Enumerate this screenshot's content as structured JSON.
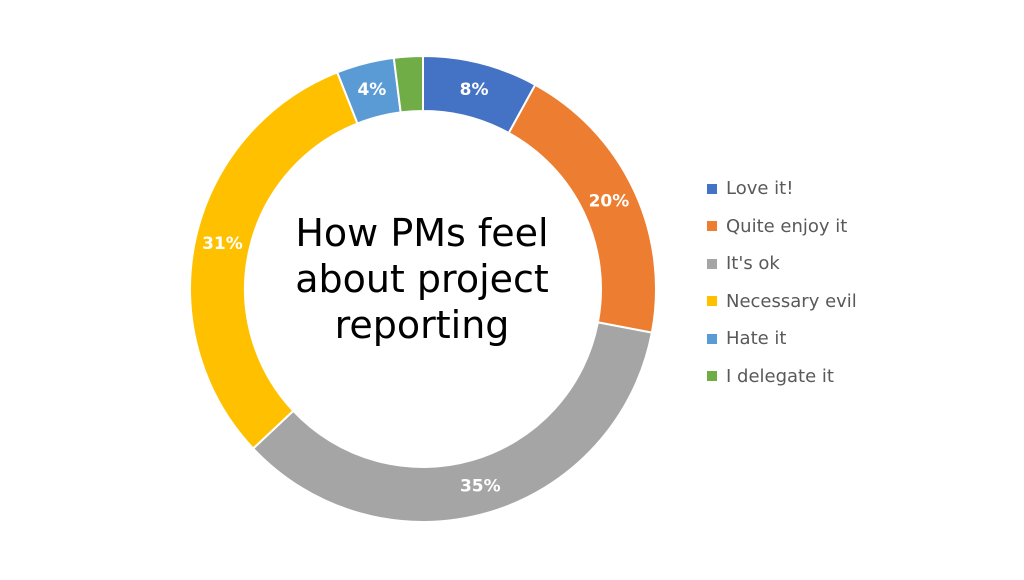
{
  "chart_data": {
    "type": "pie",
    "variant": "doughnut",
    "title_lines": [
      "How PMs feel",
      "about project",
      "reporting"
    ],
    "categories": [
      "Love it!",
      "Quite enjoy it",
      "It's ok",
      "Necessary evil",
      "Hate it",
      "I delegate it"
    ],
    "values": [
      8,
      20,
      35,
      31,
      4,
      2
    ],
    "data_labels": [
      "8%",
      "20%",
      "35%",
      "31%",
      "4%",
      ""
    ],
    "colors": [
      "#4472C4",
      "#ED7D31",
      "#A5A5A5",
      "#FFC000",
      "#5B9BD5",
      "#70AD47"
    ],
    "legend_position": "right"
  }
}
